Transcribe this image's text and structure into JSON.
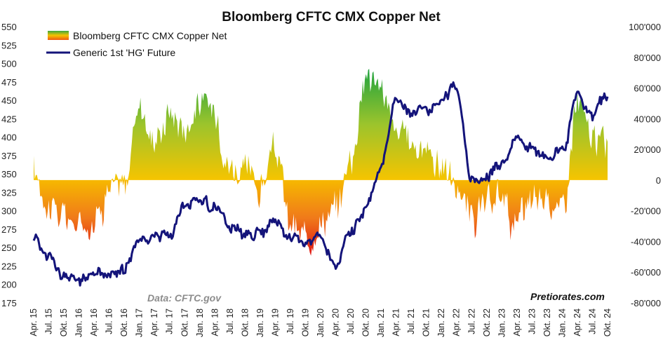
{
  "chart_data": {
    "type": "area",
    "title": "Bloomberg CFTC CMX Copper Net",
    "y_left": {
      "ticks": [
        "550",
        "525",
        "500",
        "475",
        "450",
        "425",
        "400",
        "375",
        "350",
        "325",
        "300",
        "275",
        "250",
        "225",
        "200",
        "175"
      ],
      "range": [
        175,
        550
      ]
    },
    "y_right": {
      "ticks": [
        "100'000",
        "80'000",
        "60'000",
        "40'000",
        "20'000",
        "0",
        "-20'000",
        "-40'000",
        "-60'000",
        "-80'000"
      ],
      "range": [
        -80000,
        100000
      ]
    },
    "x_ticks": [
      "Apr. 15",
      "Jul. 15",
      "Okt. 15",
      "Jan. 16",
      "Apr. 16",
      "Jul. 16",
      "Okt. 16",
      "Jan. 17",
      "Apr. 17",
      "Jul. 17",
      "Okt. 17",
      "Jan. 18",
      "Apr. 18",
      "Jul. 18",
      "Okt. 18",
      "Jan. 19",
      "Apr. 19",
      "Jul. 19",
      "Okt. 19",
      "Jan. 20",
      "Apr. 20",
      "Jul. 20",
      "Okt. 20",
      "Jan. 21",
      "Apr. 21",
      "Jul. 21",
      "Okt. 21",
      "Jan. 22",
      "Apr. 22",
      "Jul. 22",
      "Okt. 22",
      "Jan. 23",
      "Apr. 23",
      "Jul. 23",
      "Okt. 23",
      "Jan. 24",
      "Apr. 24",
      "Jul. 24",
      "Okt. 24"
    ],
    "legend_placement": "top-left",
    "series": [
      {
        "name": "Bloomberg CFTC CMX Copper Net",
        "axis": "right",
        "style": "area gradient (green positive / orange-red negative)",
        "x": [
          "Apr. 15",
          "Jul. 15",
          "Okt. 15",
          "Jan. 16",
          "Apr. 16",
          "Jul. 16",
          "Okt. 16",
          "Jan. 17",
          "Apr. 17",
          "Jul. 17",
          "Okt. 17",
          "Jan. 18",
          "Apr. 18",
          "Jul. 18",
          "Okt. 18",
          "Jan. 19",
          "Apr. 19",
          "Jul. 19",
          "Okt. 19",
          "Jan. 20",
          "Apr. 20",
          "Jul. 20",
          "Okt. 20",
          "Jan. 21",
          "Apr. 21",
          "Jul. 21",
          "Okt. 21",
          "Jan. 22",
          "Apr. 22",
          "Jul. 22",
          "Okt. 22",
          "Jan. 23",
          "Apr. 23",
          "Jul. 23",
          "Okt. 23",
          "Jan. 24",
          "Apr. 24",
          "Jul. 24",
          "Okt. 24"
        ],
        "values": [
          5000,
          -15000,
          -25000,
          -30000,
          -25000,
          -5000,
          -5000,
          50000,
          25000,
          45000,
          35000,
          50000,
          45000,
          10000,
          5000,
          -5000,
          20000,
          -30000,
          -40000,
          -25000,
          -20000,
          15000,
          70000,
          60000,
          30000,
          25000,
          20000,
          10000,
          -5000,
          -25000,
          -20000,
          -10000,
          -30000,
          -15000,
          -10000,
          -20000,
          50000,
          25000,
          25000
        ]
      },
      {
        "name": "Generic 1st 'HG' Future",
        "axis": "left",
        "color": "#14147a",
        "x": [
          "Apr. 15",
          "Jul. 15",
          "Okt. 15",
          "Jan. 16",
          "Apr. 16",
          "Jul. 16",
          "Okt. 16",
          "Jan. 17",
          "Apr. 17",
          "Jul. 17",
          "Okt. 17",
          "Jan. 18",
          "Apr. 18",
          "Jul. 18",
          "Okt. 18",
          "Jan. 19",
          "Apr. 19",
          "Jul. 19",
          "Okt. 19",
          "Jan. 20",
          "Apr. 20",
          "Jul. 20",
          "Okt. 20",
          "Jan. 21",
          "Apr. 21",
          "Jul. 21",
          "Okt. 21",
          "Jan. 22",
          "Apr. 22",
          "Jul. 22",
          "Okt. 22",
          "Jan. 23",
          "Apr. 23",
          "Jul. 23",
          "Okt. 23",
          "Jan. 24",
          "Apr. 24",
          "Jul. 24",
          "Okt. 24"
        ],
        "values": [
          265,
          240,
          210,
          205,
          215,
          215,
          220,
          260,
          265,
          270,
          305,
          315,
          305,
          275,
          265,
          270,
          285,
          265,
          255,
          265,
          225,
          270,
          305,
          355,
          450,
          435,
          440,
          450,
          470,
          340,
          345,
          365,
          395,
          385,
          370,
          380,
          460,
          430,
          455
        ]
      }
    ],
    "annotations": {
      "source": "Data: CFTC.gov",
      "brand": "Pretiorates.com"
    },
    "colors": {
      "line": "#14147a",
      "positive": "#2ca844",
      "mid": "#f5c400",
      "negative": "#e8401c"
    }
  }
}
